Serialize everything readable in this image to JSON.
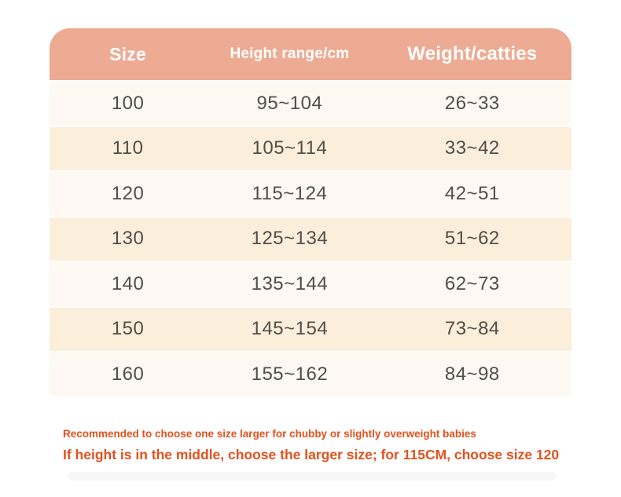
{
  "table": {
    "headers": [
      "Size",
      "Height range/cm",
      "Weight/catties"
    ],
    "rows": [
      [
        "100",
        "95~104",
        "26~33"
      ],
      [
        "110",
        "105~114",
        "33~42"
      ],
      [
        "120",
        "115~124",
        "42~51"
      ],
      [
        "130",
        "125~134",
        "51~62"
      ],
      [
        "140",
        "135~144",
        "62~73"
      ],
      [
        "150",
        "145~154",
        "73~84"
      ],
      [
        "160",
        "155~162",
        "84~98"
      ]
    ]
  },
  "notes": {
    "line1": "Recommended to choose one size larger for chubby or slightly overweight babies",
    "line2": "If height is in the middle, choose the larger size; for 115CM, choose size 120"
  },
  "colors": {
    "header_bg": "#EDAB93",
    "row_light": "#FDF8F1",
    "row_cream": "#FBEEDB",
    "header_text": "#FFFFFF",
    "cell_text": "#504E49",
    "note_text": "#E4511D"
  },
  "chart_data": {
    "type": "table",
    "columns": [
      "Size",
      "Height range/cm",
      "Weight/catties"
    ],
    "rows": [
      [
        "100",
        "95~104",
        "26~33"
      ],
      [
        "110",
        "105~114",
        "33~42"
      ],
      [
        "120",
        "115~124",
        "42~51"
      ],
      [
        "130",
        "125~134",
        "51~62"
      ],
      [
        "140",
        "135~144",
        "62~73"
      ],
      [
        "150",
        "145~154",
        "73~84"
      ],
      [
        "160",
        "155~162",
        "84~98"
      ]
    ],
    "title": "",
    "notes": [
      "Recommended to choose one size larger for chubby or slightly overweight babies",
      "If height is in the middle, choose the larger size; for 115CM, choose size 120"
    ]
  }
}
